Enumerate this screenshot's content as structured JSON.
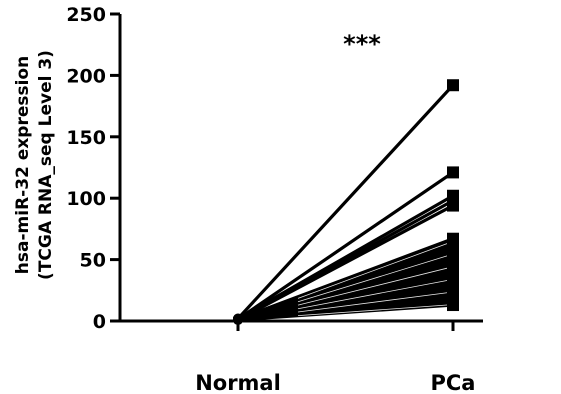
{
  "chart_data": {
    "type": "line",
    "title": "",
    "categories": [
      "Normal",
      "PCa"
    ],
    "ylabel_lines": [
      "hsa-miR-32 expression",
      "(TCGA RNA_seq Level 3)"
    ],
    "xlabel": "",
    "ylim": [
      0,
      250
    ],
    "yticks": [
      0,
      50,
      100,
      150,
      200,
      250
    ],
    "significance": "***",
    "grid": false,
    "legend": "none",
    "series": [
      {
        "values": [
          2,
          192
        ]
      },
      {
        "values": [
          1.5,
          121
        ]
      },
      {
        "values": [
          1.8,
          102
        ]
      },
      {
        "values": [
          1.2,
          98
        ]
      },
      {
        "values": [
          1,
          94
        ]
      },
      {
        "values": [
          1.5,
          67
        ]
      },
      {
        "values": [
          1.3,
          65
        ]
      },
      {
        "values": [
          1.1,
          63
        ]
      },
      {
        "values": [
          1.4,
          61
        ]
      },
      {
        "values": [
          1.2,
          59
        ]
      },
      {
        "values": [
          1,
          57
        ]
      },
      {
        "values": [
          1.3,
          55
        ]
      },
      {
        "values": [
          1.1,
          53
        ]
      },
      {
        "values": [
          1.2,
          51
        ]
      },
      {
        "values": [
          1,
          49
        ]
      },
      {
        "values": [
          1.4,
          47
        ]
      },
      {
        "values": [
          1.1,
          45
        ]
      },
      {
        "values": [
          1.2,
          43
        ]
      },
      {
        "values": [
          1,
          41
        ]
      },
      {
        "values": [
          1.3,
          39
        ]
      },
      {
        "values": [
          1.1,
          37
        ]
      },
      {
        "values": [
          1.2,
          35
        ]
      },
      {
        "values": [
          1,
          33
        ]
      },
      {
        "values": [
          1.3,
          31
        ]
      },
      {
        "values": [
          1.1,
          29
        ]
      },
      {
        "values": [
          1.2,
          27
        ]
      },
      {
        "values": [
          1,
          25
        ]
      },
      {
        "values": [
          1.2,
          23
        ]
      },
      {
        "values": [
          1.1,
          21
        ]
      },
      {
        "values": [
          1,
          19
        ]
      },
      {
        "values": [
          1.2,
          17
        ]
      },
      {
        "values": [
          1.1,
          15
        ]
      },
      {
        "values": [
          1,
          13
        ]
      }
    ],
    "colors": {
      "line": "#000000",
      "highlight": "#ffffff"
    }
  }
}
